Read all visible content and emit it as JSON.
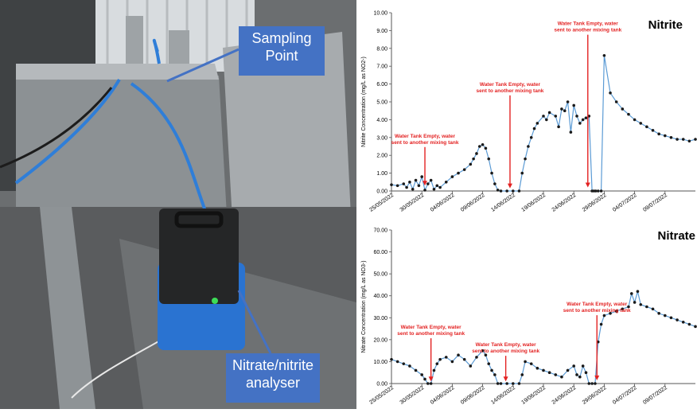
{
  "photo": {
    "labels": {
      "sampling_point": "Sampling\nPoint",
      "analyser": "Nitrate/nitrite\nanalyser"
    }
  },
  "colors": {
    "line": "#5b9bd5",
    "marker": "#1a1a1a",
    "arrow": "#e32222",
    "annotation_text": "#e32222",
    "label_box": "#4472c4"
  },
  "chart_data": [
    {
      "type": "scatter",
      "title": "Nitrite",
      "xlabel": "",
      "ylabel": "Nitrite Concentration (mg/L as NO2-)",
      "x_ticks": [
        "25/05/2022",
        "30/05/2022",
        "04/06/2022",
        "09/06/2022",
        "14/06/2022",
        "19/06/2022",
        "24/06/2022",
        "29/06/2022",
        "04/07/2022",
        "09/07/2022"
      ],
      "y_ticks": [
        "0.00",
        "1.00",
        "2.00",
        "3.00",
        "4.00",
        "5.00",
        "6.00",
        "7.00",
        "8.00",
        "9.00",
        "10.00"
      ],
      "ylim": [
        0,
        10
      ],
      "xlim_days": [
        0,
        50
      ],
      "annotations": [
        {
          "text": "Water Tank Empty, water\nsent to another mixing tank",
          "x_day": 5.5,
          "arrow_to_y": 0.3,
          "text_y": 3.0
        },
        {
          "text": "Water Tank Empty, water\nsent to another mixing tank",
          "x_day": 19.5,
          "arrow_to_y": 0.15,
          "text_y": 5.9
        },
        {
          "text": "Water Tank Empty, water\nsent to another mixing tank",
          "x_day": 32.3,
          "arrow_to_y": 0.2,
          "text_y": 9.3
        }
      ],
      "series": [
        {
          "x": [
            0,
            1,
            2,
            2.5,
            3,
            3.5,
            4,
            4.5,
            5,
            5.5,
            6,
            6.5,
            7,
            7.5,
            8,
            9,
            10,
            11,
            12,
            13,
            13.5,
            14,
            14.5,
            15,
            15.5,
            16,
            16.5,
            17,
            17.5,
            18,
            19,
            20,
            21,
            21.5,
            22,
            22.5,
            23,
            23.5,
            24,
            25,
            25.5,
            26,
            27,
            27.5,
            28,
            28.5,
            29,
            29.5,
            30,
            30.5,
            31,
            31.5,
            32,
            32.5,
            33,
            33.3,
            33.6,
            34,
            34.5,
            35,
            36,
            37,
            38,
            39,
            40,
            41,
            42,
            43,
            44,
            45,
            46,
            47,
            48,
            49,
            50
          ],
          "y": [
            0.35,
            0.3,
            0.4,
            0.2,
            0.5,
            0.1,
            0.6,
            0.3,
            0.8,
            0.05,
            0.4,
            0.6,
            0.1,
            0.3,
            0.2,
            0.5,
            0.8,
            1.0,
            1.2,
            1.5,
            1.8,
            2.1,
            2.5,
            2.6,
            2.4,
            1.8,
            1.0,
            0.4,
            0.05,
            0.0,
            0.0,
            0.0,
            0.0,
            1.0,
            1.8,
            2.5,
            3.0,
            3.5,
            3.8,
            4.2,
            4.0,
            4.4,
            4.2,
            3.6,
            4.6,
            4.5,
            5.0,
            3.3,
            4.8,
            4.2,
            3.8,
            4.0,
            4.1,
            4.2,
            0.0,
            0.0,
            0.0,
            0.0,
            0.0,
            7.6,
            5.5,
            5.0,
            4.6,
            4.3,
            4.0,
            3.8,
            3.6,
            3.4,
            3.2,
            3.1,
            3.0,
            2.9,
            2.9,
            2.8,
            2.9
          ]
        }
      ]
    },
    {
      "type": "scatter",
      "title": "Nitrate",
      "xlabel": "",
      "ylabel": "Nitrate Concentration (mg/L as NO3-)",
      "x_ticks": [
        "25/05/2022",
        "30/05/2022",
        "04/06/2022",
        "09/06/2022",
        "14/06/2022",
        "19/06/2022",
        "24/06/2022",
        "29/06/2022",
        "04/07/2022",
        "09/07/2022"
      ],
      "y_ticks": [
        "0.00",
        "10.00",
        "20.00",
        "30.00",
        "40.00",
        "50.00",
        "60.00",
        "70.00"
      ],
      "ylim": [
        0,
        70
      ],
      "xlim_days": [
        0,
        50
      ],
      "annotations": [
        {
          "text": "Water Tank Empty, water\nsent to another mixing tank",
          "x_day": 6.5,
          "arrow_to_y": 1.0,
          "text_y": 25.0
        },
        {
          "text": "Water Tank Empty, water\nsent to another mixing tank",
          "x_day": 18.8,
          "arrow_to_y": 1.0,
          "text_y": 17.0
        },
        {
          "text": "Water Tank Empty, water\nsent to another mixing tank",
          "x_day": 33.8,
          "arrow_to_y": 1.5,
          "text_y": 35.5
        }
      ],
      "series": [
        {
          "x": [
            0,
            1,
            2,
            3,
            4,
            5,
            5.5,
            6,
            6.5,
            7,
            7.5,
            8,
            9,
            10,
            11,
            12,
            13,
            14,
            15,
            15.5,
            16,
            16.5,
            17,
            17.5,
            18,
            19,
            20,
            21,
            21.5,
            22,
            23,
            24,
            25,
            26,
            27,
            28,
            29,
            30,
            30.5,
            31,
            31.5,
            32,
            32.5,
            33,
            33.5,
            34,
            34.5,
            35,
            36,
            37,
            38,
            39,
            39.5,
            40,
            40.5,
            41,
            42,
            43,
            44,
            45,
            46,
            47,
            48,
            49,
            50
          ],
          "y": [
            11,
            10,
            9,
            8,
            6,
            4,
            2,
            0,
            0,
            6,
            9,
            11,
            12,
            10,
            13,
            11,
            8,
            12,
            15,
            13,
            9,
            6,
            4,
            0,
            0,
            0,
            0,
            0,
            4,
            10,
            9,
            7,
            6,
            5,
            4,
            3,
            6,
            8,
            4,
            3,
            8,
            5,
            0,
            0,
            0,
            19,
            27,
            31,
            32,
            33,
            34,
            35,
            41,
            37,
            42,
            36,
            35,
            34,
            32,
            31,
            30,
            29,
            28,
            27,
            26
          ]
        }
      ]
    }
  ]
}
